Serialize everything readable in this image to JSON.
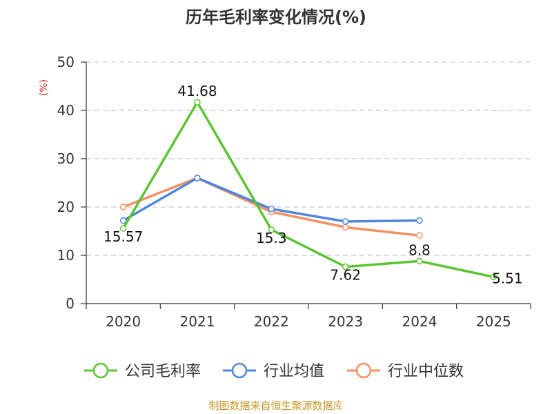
{
  "chart_data": {
    "type": "line",
    "title": "历年毛利率变化情况(%)",
    "ylabel": "(%)",
    "xlabel": "",
    "categories": [
      "2020",
      "2021",
      "2022",
      "2023",
      "2024",
      "2025"
    ],
    "ylim": [
      0,
      50
    ],
    "yticks": [
      0,
      10,
      20,
      30,
      40,
      50
    ],
    "grid": true,
    "legend_position": "bottom",
    "series": [
      {
        "name": "公司毛利率",
        "color": "#5cc430",
        "values": [
          15.57,
          41.68,
          15.3,
          7.62,
          8.8,
          5.51
        ],
        "labels": [
          "15.57",
          "41.68",
          "15.3",
          "7.62",
          "8.8",
          "5.51"
        ]
      },
      {
        "name": "行业均值",
        "color": "#4e86e0",
        "values": [
          17.2,
          26.0,
          19.6,
          17.0,
          17.2,
          null
        ]
      },
      {
        "name": "行业中位数",
        "color": "#f59062",
        "values": [
          20.0,
          26.0,
          19.0,
          15.8,
          14.1,
          null
        ]
      }
    ],
    "source": "制图数据来自恒生聚源数据库"
  }
}
